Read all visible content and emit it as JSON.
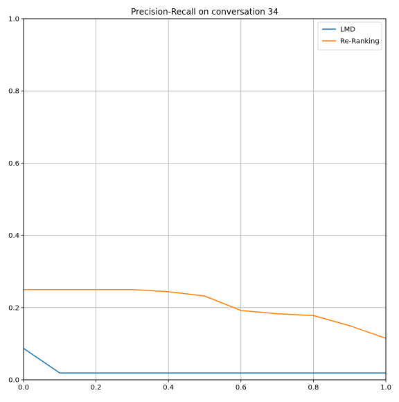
{
  "chart_data": {
    "type": "line",
    "title": "Precision-Recall on conversation 34",
    "xlabel": "",
    "ylabel": "",
    "xlim": [
      0.0,
      1.0
    ],
    "ylim": [
      0.0,
      1.0
    ],
    "xticks": [
      "0.0",
      "0.2",
      "0.4",
      "0.6",
      "0.8",
      "1.0"
    ],
    "yticks": [
      "0.0",
      "0.2",
      "0.4",
      "0.6",
      "0.8",
      "1.0"
    ],
    "grid": true,
    "legend_position": "top-right",
    "series": [
      {
        "name": "LMD",
        "color": "#1f77b4",
        "x": [
          0.0,
          0.1,
          0.2,
          0.3,
          0.4,
          0.5,
          0.6,
          0.7,
          0.8,
          0.9,
          1.0
        ],
        "y": [
          0.087,
          0.019,
          0.019,
          0.019,
          0.019,
          0.019,
          0.019,
          0.019,
          0.019,
          0.019,
          0.019
        ]
      },
      {
        "name": "Re-Ranking",
        "color": "#ff7f0e",
        "x": [
          0.0,
          0.1,
          0.2,
          0.3,
          0.4,
          0.5,
          0.6,
          0.7,
          0.8,
          0.9,
          1.0
        ],
        "y": [
          0.25,
          0.25,
          0.25,
          0.25,
          0.244,
          0.232,
          0.192,
          0.183,
          0.178,
          0.15,
          0.115
        ]
      }
    ]
  }
}
